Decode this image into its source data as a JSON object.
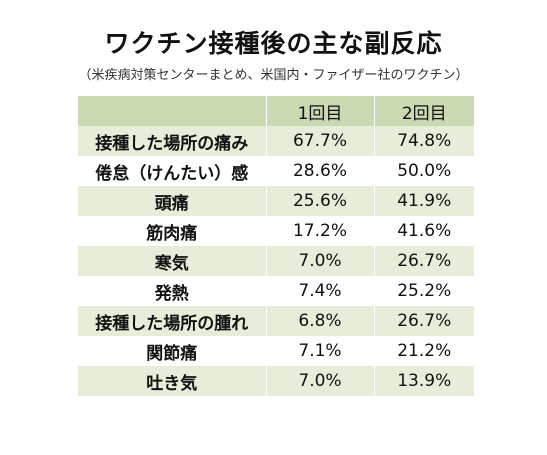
{
  "chart_data": {
    "type": "table",
    "title": "ワクチン接種後の主な副反応",
    "subtitle": "（米疾病対策センターまとめ、米国内・ファイザー社のワクチン）",
    "columns": [
      "",
      "1回目",
      "2回目"
    ],
    "rows": [
      {
        "name": "接種した場所の痛み",
        "dose1": "67.7%",
        "dose2": "74.8%"
      },
      {
        "name": "倦怠（けんたい）感",
        "dose1": "28.6%",
        "dose2": "50.0%"
      },
      {
        "name": "頭痛",
        "dose1": "25.6%",
        "dose2": "41.9%"
      },
      {
        "name": "筋肉痛",
        "dose1": "17.2%",
        "dose2": "41.6%"
      },
      {
        "name": "寒気",
        "dose1": "7.0%",
        "dose2": "26.7%"
      },
      {
        "name": "発熱",
        "dose1": "7.4%",
        "dose2": "25.2%"
      },
      {
        "name": "接種した場所の腫れ",
        "dose1": "6.8%",
        "dose2": "26.7%"
      },
      {
        "name": "関節痛",
        "dose1": "7.1%",
        "dose2": "21.2%"
      },
      {
        "name": "吐き気",
        "dose1": "7.0%",
        "dose2": "13.9%"
      }
    ]
  },
  "colors": {
    "header_bg": "#cbdab2",
    "stripe_bg": "#e6edd8",
    "plain_bg": "#ffffff"
  }
}
